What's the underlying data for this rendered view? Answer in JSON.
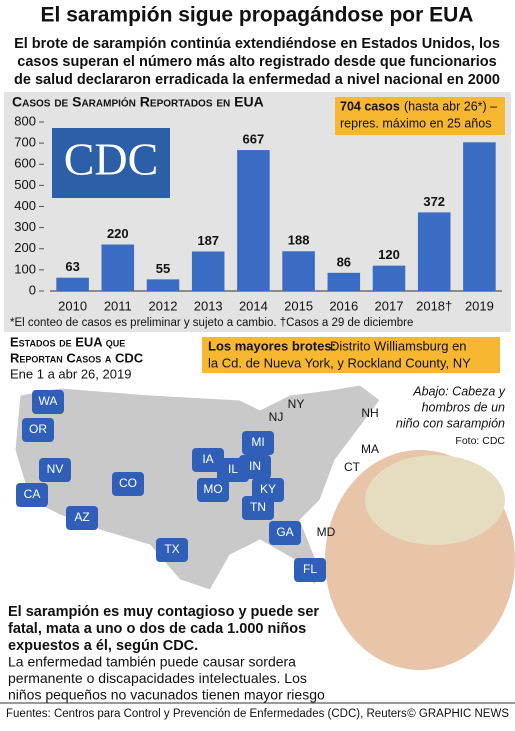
{
  "header": {
    "title": "El sarampión sigue propagándose por EUA",
    "subtitle": [
      "El brote de sarampión continúa extendiéndose en Estados Unidos, los",
      "casos superan el número más alto registrado desde que funcionarios",
      "de salud declararon erradicada la enfermedad a nivel nacional en 2000"
    ]
  },
  "chart_data": {
    "type": "bar",
    "title": "Casos de Sarampión Reportados en EUA",
    "categories": [
      "2010",
      "2011",
      "2012",
      "2013",
      "2014",
      "2015",
      "2016",
      "2017",
      "2018†",
      "2019"
    ],
    "values": [
      63,
      220,
      55,
      187,
      667,
      188,
      86,
      120,
      372,
      704
    ],
    "color": "#3b6cc4",
    "ylim": [
      0,
      800
    ],
    "yticks": [
      0,
      100,
      200,
      300,
      400,
      500,
      600,
      700,
      800
    ],
    "grid": false,
    "logo": "CDC",
    "annotation": [
      "704 casos",
      "(hasta abr 26*) –",
      "repres. máximo en 25 años"
    ],
    "footnote": "*El conteo de casos es preliminar y sujeto a cambio. †Casos a 29 de diciembre"
  },
  "map": {
    "title": [
      "Estados de EUA que",
      "Reportan Casos a CDC"
    ],
    "date": "Ene 1 a abr 26, 2019",
    "callout_title": "Los mayores brotes:",
    "callout": [
      "Distrito Williamsburg en",
      "la Cd. de Nueva York, y Rockland County, NY"
    ],
    "states": [
      "WA",
      "OR",
      "CA",
      "NV",
      "AZ",
      "CO",
      "TX",
      "MI",
      "IA",
      "IL",
      "IN",
      "MO",
      "KY",
      "TN",
      "GA",
      "FL",
      "NY",
      "NJ",
      "NH",
      "MA",
      "CT",
      "MD"
    ],
    "photo_caption": [
      "Abajo: Cabeza y",
      "hombros de un",
      "niño con sarampión"
    ],
    "photo_credit": "Foto: CDC"
  },
  "body": {
    "bold": [
      "El sarampión es muy contagioso y puede ser",
      "fatal, mata a uno o dos de cada 1.000 niños",
      "expuestos a él, según CDC."
    ],
    "regular": [
      "La enfermedad también puede causar sordera",
      "permanente o discapacidades intelectuales. Los",
      "niños pequeños no vacunados tienen mayor riesgo"
    ]
  },
  "footer": {
    "source": "Fuentes: Centros para Control y Prevención de Enfermedades (CDC), Reuters",
    "credit": "© GRAPHIC NEWS"
  }
}
